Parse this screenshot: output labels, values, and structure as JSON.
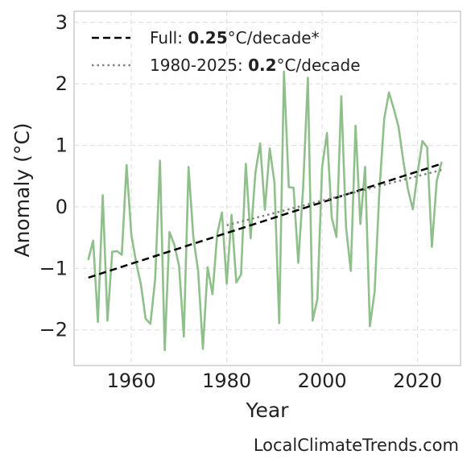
{
  "chart_data": {
    "type": "line",
    "xlabel": "Year",
    "ylabel": "Anomaly (°C)",
    "xlim": [
      1948,
      2029
    ],
    "ylim": [
      -2.58,
      3.18
    ],
    "xticks": [
      1960,
      1980,
      2000,
      2020
    ],
    "xtick_labels": [
      "1960",
      "1980",
      "2000",
      "2020"
    ],
    "yticks": [
      -2,
      -1,
      0,
      1,
      2,
      3
    ],
    "ytick_labels": [
      "−2",
      "−1",
      "0",
      "1",
      "2",
      "3"
    ],
    "grid": true,
    "legend_position": "top-left",
    "series": [
      {
        "color": "#8fbf8a",
        "x": [
          1951,
          1952,
          1953,
          1954,
          1955,
          1956,
          1957,
          1958,
          1959,
          1960,
          1961,
          1962,
          1963,
          1964,
          1965,
          1966,
          1967,
          1968,
          1969,
          1970,
          1971,
          1972,
          1973,
          1974,
          1975,
          1976,
          1977,
          1978,
          1979,
          1980,
          1981,
          1982,
          1983,
          1984,
          1985,
          1986,
          1987,
          1988,
          1989,
          1990,
          1991,
          1992,
          1993,
          1994,
          1995,
          1996,
          1997,
          1998,
          1999,
          2000,
          2001,
          2002,
          2003,
          2004,
          2005,
          2006,
          2007,
          2008,
          2009,
          2010,
          2011,
          2012,
          2013,
          2014,
          2015,
          2016,
          2017,
          2018,
          2019,
          2020,
          2021,
          2022,
          2023,
          2024,
          2025
        ],
        "y": [
          -0.85,
          -0.55,
          -1.87,
          0.19,
          -1.85,
          -0.73,
          -0.72,
          -0.78,
          0.68,
          -0.45,
          -0.9,
          -1.26,
          -1.82,
          -1.9,
          -1.18,
          0.75,
          -2.33,
          -0.41,
          -0.61,
          -0.96,
          -2.11,
          0.65,
          -0.49,
          -1.04,
          -2.31,
          -0.98,
          -1.42,
          -0.44,
          -0.09,
          -1.25,
          -0.13,
          -1.23,
          -1.1,
          0.7,
          -0.51,
          0.55,
          1.03,
          -0.05,
          0.95,
          0.39,
          -1.89,
          2.2,
          0.32,
          0.31,
          -0.91,
          0.29,
          2.1,
          -1.85,
          -1.5,
          0.65,
          1.2,
          -0.17,
          -0.49,
          1.8,
          -0.33,
          -1.04,
          1.32,
          -0.28,
          0.65,
          -1.94,
          -1.38,
          0.28,
          1.43,
          1.86,
          1.6,
          1.3,
          0.75,
          0.28,
          -0.04,
          0.55,
          1.07,
          0.97,
          -0.65,
          0.42,
          0.72
        ]
      }
    ],
    "trends": [
      {
        "color": "#000000",
        "style": "dashed",
        "x": [
          1951,
          2025
        ],
        "y": [
          -1.15,
          0.7
        ]
      },
      {
        "color": "#808080",
        "style": "dotted",
        "x": [
          1980,
          2025
        ],
        "y": [
          -0.3,
          0.6
        ]
      }
    ],
    "legend": [
      {
        "prefix": "Full: ",
        "value": "0.25",
        "suffix": "°C/decade*",
        "color": "#000000",
        "style": "dashed"
      },
      {
        "prefix": "1980-2025: ",
        "value": "0.2",
        "suffix": "°C/decade",
        "color": "#808080",
        "style": "dotted"
      }
    ]
  },
  "watermark": "LocalClimateTrends.com"
}
